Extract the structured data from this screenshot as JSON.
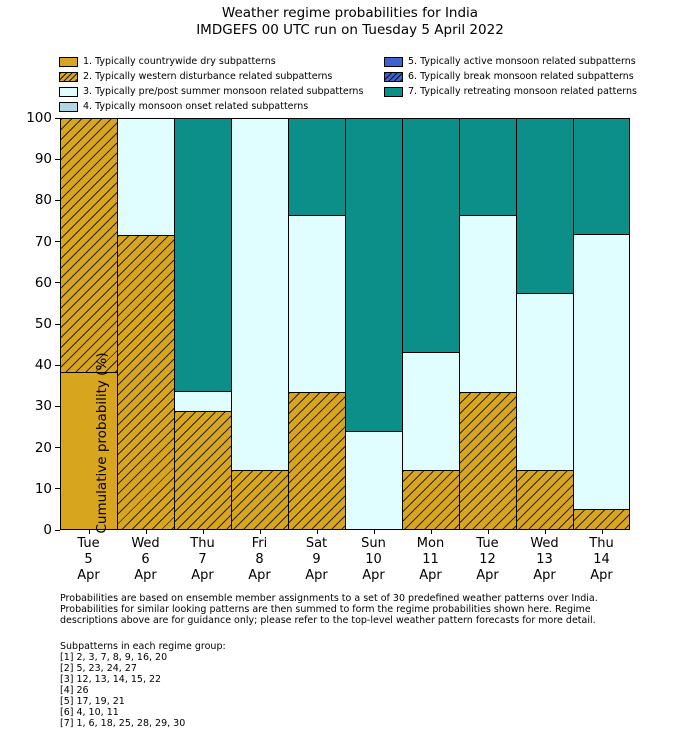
{
  "chart_data": {
    "type": "bar",
    "stacked": true,
    "title": "Weather regime probabilities for India",
    "subtitle": "IMDGEFS 00 UTC run on Tuesday 5 April 2022",
    "ylabel": "Cumulative probability (%)",
    "ylim": [
      0,
      100
    ],
    "yticks": [
      0,
      10,
      20,
      30,
      40,
      50,
      60,
      70,
      80,
      90,
      100
    ],
    "grid": false,
    "legend_position": "top, two columns above plot",
    "categories": [
      {
        "day": "Tue",
        "date": "5",
        "month": "Apr"
      },
      {
        "day": "Wed",
        "date": "6",
        "month": "Apr"
      },
      {
        "day": "Thu",
        "date": "7",
        "month": "Apr"
      },
      {
        "day": "Fri",
        "date": "8",
        "month": "Apr"
      },
      {
        "day": "Sat",
        "date": "9",
        "month": "Apr"
      },
      {
        "day": "Sun",
        "date": "10",
        "month": "Apr"
      },
      {
        "day": "Mon",
        "date": "11",
        "month": "Apr"
      },
      {
        "day": "Tue",
        "date": "12",
        "month": "Apr"
      },
      {
        "day": "Wed",
        "date": "13",
        "month": "Apr"
      },
      {
        "day": "Thu",
        "date": "14",
        "month": "Apr"
      }
    ],
    "regimes": [
      {
        "id": 1,
        "label": "1. Typically countrywide dry subpatterns",
        "color": "#d8a51f",
        "hatch": false
      },
      {
        "id": 2,
        "label": "2. Typically western disturbance related subpatterns",
        "color": "#d8a51f",
        "hatch": true
      },
      {
        "id": 3,
        "label": "3. Typically pre/post summer monsoon related subpatterns",
        "color": "#e0fdff",
        "hatch": false
      },
      {
        "id": 4,
        "label": "4. Typically monsoon onset related subpatterns",
        "color": "#aed8e5",
        "hatch": false
      },
      {
        "id": 5,
        "label": "5. Typically active monsoon related subpatterns",
        "color": "#3f62d2",
        "hatch": false
      },
      {
        "id": 6,
        "label": "6. Typically break monsoon related subpatterns",
        "color": "#3f62d2",
        "hatch": true
      },
      {
        "id": 7,
        "label": "7. Typically retreating monsoon related patterns",
        "color": "#0b8f88",
        "hatch": false
      }
    ],
    "series": [
      {
        "name": "1. Typically countrywide dry subpatterns",
        "values": [
          38.1,
          0,
          0,
          0,
          0,
          0,
          0,
          0,
          0,
          0
        ]
      },
      {
        "name": "2. Typically western disturbance related subpatterns",
        "values": [
          61.9,
          71.4,
          28.6,
          14.3,
          33.3,
          0,
          14.3,
          33.3,
          14.3,
          4.8
        ]
      },
      {
        "name": "3. Typically pre/post summer monsoon related subpatterns",
        "values": [
          0,
          28.6,
          4.8,
          85.7,
          42.9,
          23.8,
          28.6,
          42.9,
          42.9,
          66.7
        ]
      },
      {
        "name": "4. Typically monsoon onset related subpatterns",
        "values": [
          0,
          0,
          0,
          0,
          0,
          0,
          0,
          0,
          0,
          0
        ]
      },
      {
        "name": "5. Typically active monsoon related subpatterns",
        "values": [
          0,
          0,
          0,
          0,
          0,
          0,
          0,
          0,
          0,
          0
        ]
      },
      {
        "name": "6. Typically break monsoon related subpatterns",
        "values": [
          0,
          0,
          0,
          0,
          0,
          0,
          0,
          0,
          0,
          0
        ]
      },
      {
        "name": "7. Typically retreating monsoon related patterns",
        "values": [
          0,
          0,
          66.7,
          0,
          23.8,
          76.2,
          57.1,
          23.8,
          42.9,
          28.6
        ]
      }
    ]
  },
  "footer": {
    "description_lines": [
      "Probabilities are based on ensemble member assignments to a set of 30 predefined weather patterns over India.",
      "Probabilities for similar looking patterns are then summed to form the regime probabilities shown here. Regime",
      "descriptions above are for guidance only; please refer to the top-level weather pattern forecasts for more detail."
    ],
    "subpatterns_heading": "Subpatterns in each regime group:",
    "subpatterns": [
      "[1] 2, 3, 7, 8, 9, 16, 20",
      "[2] 5, 23, 24, 27",
      "[3] 12, 13, 14, 15, 22",
      "[4] 26",
      "[5] 17, 19, 21",
      "[6] 4, 10, 11",
      "[7] 1, 6, 18, 25, 28, 29, 30"
    ]
  }
}
